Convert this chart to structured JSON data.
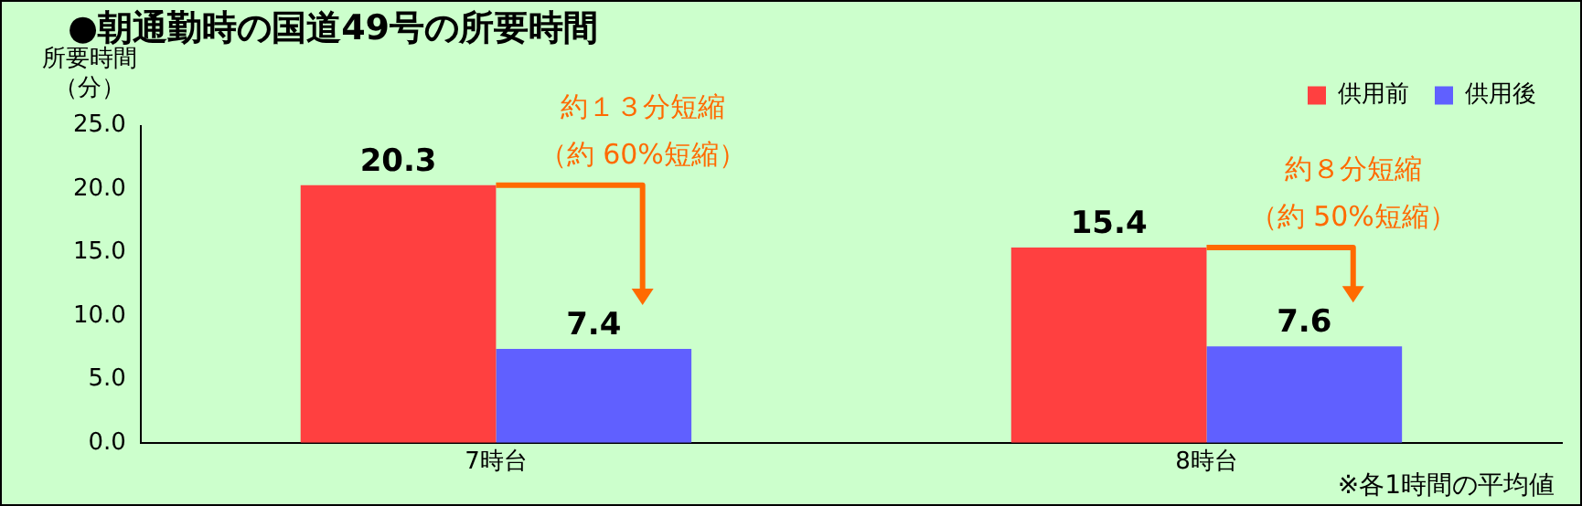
{
  "chart_data": {
    "type": "bar",
    "title": "●朝通勤時の国道49号の所要時間",
    "ylabel": "所要時間（分）",
    "categories": [
      "7時台",
      "8時台"
    ],
    "series": [
      {
        "name": "供用前",
        "color": "#ff4040",
        "values": [
          20.3,
          15.4
        ]
      },
      {
        "name": "供用後",
        "color": "#6060ff",
        "values": [
          7.4,
          7.6
        ]
      }
    ],
    "ylim": [
      0,
      25
    ],
    "yticks": [
      {
        "value": 0,
        "label": "0.0"
      },
      {
        "value": 5,
        "label": "5.0"
      },
      {
        "value": 10,
        "label": "10.0"
      },
      {
        "value": 15,
        "label": "15.0"
      },
      {
        "value": 20,
        "label": "20.0"
      },
      {
        "value": 25,
        "label": "25.0"
      }
    ],
    "data_labels": true,
    "legend": "top right",
    "grid": false,
    "annotations": [
      "約１３分短縮",
      "（約 60%短縮）",
      "約８分短縮",
      "（約 50%短縮）",
      "※各1時間の平均値"
    ]
  }
}
